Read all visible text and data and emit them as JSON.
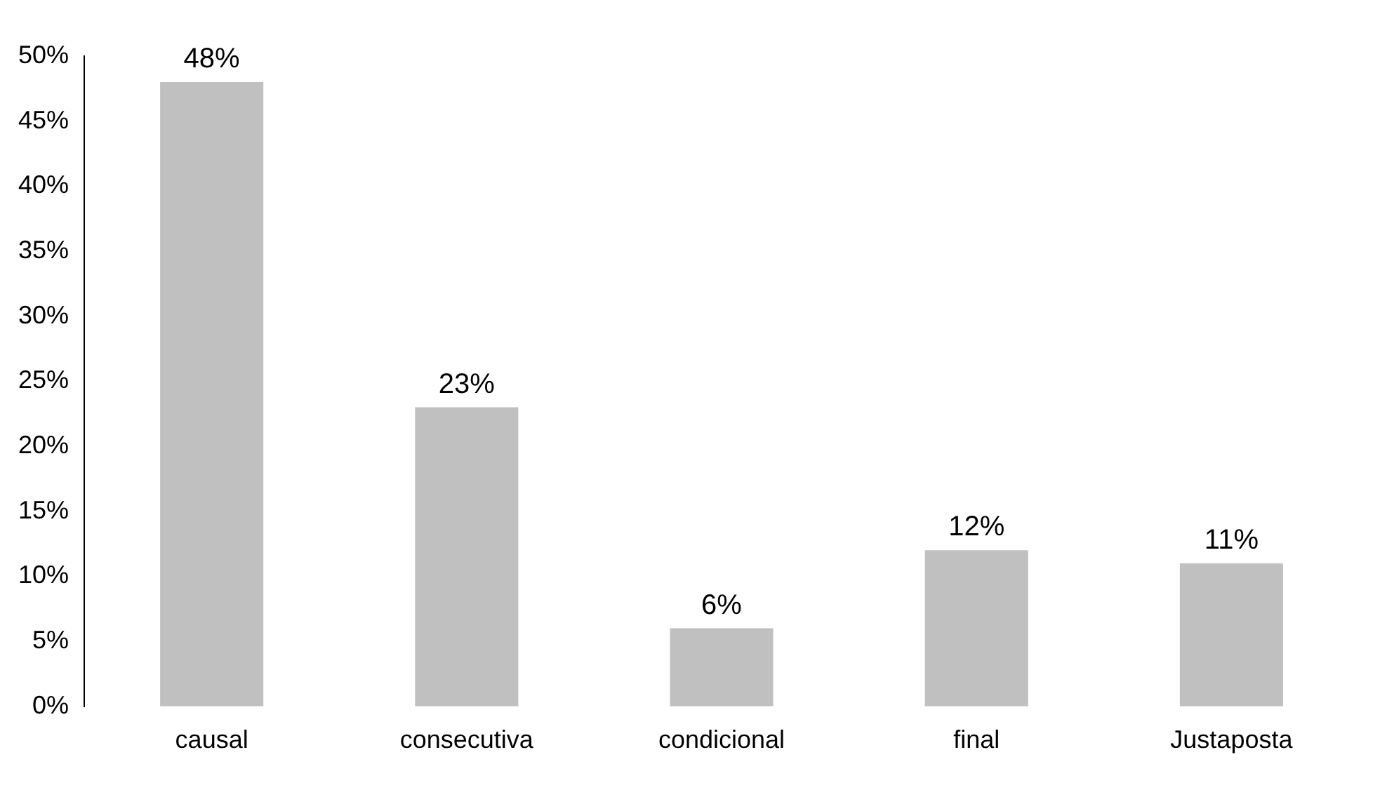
{
  "chart_data": {
    "type": "bar",
    "categories": [
      "causal",
      "consecutiva",
      "condicional",
      "final",
      "Justaposta"
    ],
    "values": [
      48,
      23,
      6,
      12,
      11
    ],
    "value_labels": [
      "48%",
      "23%",
      "6%",
      "12%",
      "11%"
    ],
    "color": "#c0c0c0",
    "ylim": [
      0,
      50
    ],
    "yticks": [
      {
        "value": 0,
        "label": "0%"
      },
      {
        "value": 5,
        "label": "5%"
      },
      {
        "value": 10,
        "label": "10%"
      },
      {
        "value": 15,
        "label": "15%"
      },
      {
        "value": 20,
        "label": "20%"
      },
      {
        "value": 25,
        "label": "25%"
      },
      {
        "value": 30,
        "label": "30%"
      },
      {
        "value": 35,
        "label": "35%"
      },
      {
        "value": 40,
        "label": "40%"
      },
      {
        "value": 45,
        "label": "45%"
      },
      {
        "value": 50,
        "label": "50%"
      }
    ],
    "grid": false,
    "legend": false
  }
}
